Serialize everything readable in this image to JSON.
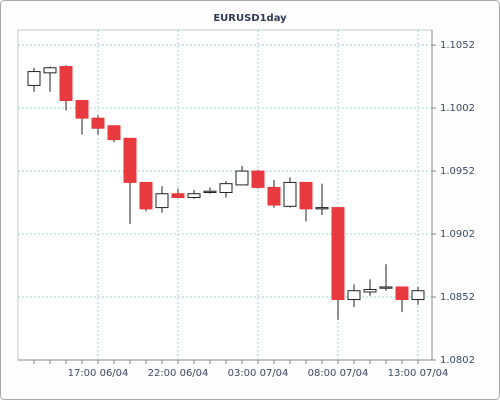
{
  "chart_data": {
    "type": "candlestick",
    "title": "EURUSD1day",
    "categories": [
      null,
      null,
      null,
      null,
      "17:00 06/04",
      null,
      null,
      null,
      null,
      "22:00 06/04",
      null,
      null,
      null,
      null,
      "03:00 07/04",
      null,
      null,
      null,
      null,
      "08:00 07/04",
      null,
      null,
      null,
      null,
      "13:00 07/04"
    ],
    "open": [
      1.102,
      1.103,
      1.1035,
      1.1008,
      1.0994,
      1.0988,
      1.0978,
      1.0943,
      1.0923,
      1.0934,
      1.0931,
      1.0935,
      1.0935,
      1.0941,
      1.0952,
      1.0939,
      1.0924,
      1.0943,
      1.0922,
      1.0923,
      1.085,
      1.0856,
      1.0859,
      1.086,
      1.085
    ],
    "high": [
      1.1034,
      1.1035,
      1.1036,
      1.1008,
      1.0996,
      1.0988,
      1.0978,
      1.0943,
      1.094,
      1.0938,
      1.0937,
      1.0939,
      1.0944,
      1.0956,
      1.0953,
      1.0945,
      1.0947,
      1.0943,
      1.0942,
      1.0923,
      1.0862,
      1.0866,
      1.0878,
      1.086,
      1.086
    ],
    "low": [
      1.1015,
      1.1015,
      1.1,
      1.0981,
      1.0981,
      1.0975,
      1.091,
      1.092,
      1.0919,
      1.0931,
      1.093,
      1.0934,
      1.0931,
      1.0941,
      1.0938,
      1.0923,
      1.0923,
      1.0912,
      1.0917,
      1.0834,
      1.0844,
      1.0853,
      1.0857,
      1.084,
      1.0846
    ],
    "close": [
      1.1031,
      1.1034,
      1.1008,
      1.0994,
      1.0986,
      1.0977,
      1.0943,
      1.0922,
      1.0934,
      1.0931,
      1.0934,
      1.0936,
      1.0942,
      1.0952,
      1.0939,
      1.0925,
      1.0943,
      1.0922,
      1.0923,
      1.085,
      1.0857,
      1.0858,
      1.086,
      1.085,
      1.0857
    ],
    "up_color": "#ffffff",
    "down_color": "#e8393f",
    "ylim": [
      1.0802,
      1.1064
    ],
    "yticks": [
      1.0802,
      1.0852,
      1.0902,
      1.0952,
      1.1002,
      1.1052
    ],
    "grid": true
  }
}
